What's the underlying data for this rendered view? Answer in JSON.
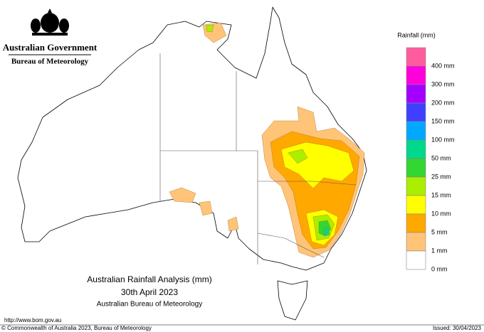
{
  "header": {
    "government": "Australian Government",
    "bureau": "Bureau of Meteorology"
  },
  "legend": {
    "title": "Rainfall (mm)",
    "items": [
      {
        "label": "400 mm",
        "color": "#ff5c9e"
      },
      {
        "label": "300 mm",
        "color": "#ff00dc"
      },
      {
        "label": "200 mm",
        "color": "#a400ff"
      },
      {
        "label": "150 mm",
        "color": "#3f3fff"
      },
      {
        "label": "100 mm",
        "color": "#00a8ff"
      },
      {
        "label": "50 mm",
        "color": "#00d98c"
      },
      {
        "label": "25 mm",
        "color": "#33d633"
      },
      {
        "label": "15 mm",
        "color": "#aaee00"
      },
      {
        "label": "10 mm",
        "color": "#ffff00"
      },
      {
        "label": "5 mm",
        "color": "#ffa800"
      },
      {
        "label": "1 mm",
        "color": "#ffc478"
      },
      {
        "label": "0 mm",
        "color": "#ffffff"
      }
    ]
  },
  "caption": {
    "title": "Australian Rainfall Analysis (mm)",
    "date": "30th April 2023",
    "source": "Australian Bureau of Meteorology"
  },
  "footer": {
    "url": "http://www.bom.gov.au",
    "copyright": "© Commonwealth of Australia 2023, Bureau of Meteorology",
    "issued": "Issued: 30/04/2023"
  }
}
